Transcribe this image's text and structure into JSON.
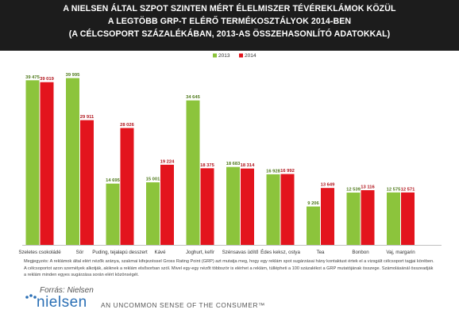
{
  "header": {
    "line1": "A NIELSEN ÁLTAL SZPOT SZINTEN MÉRT ÉLELMISZER TÉVÉREKLÁMOK KÖZÜL",
    "line2": "A LEGTÖBB GRP-T ELÉRŐ TERMÉKOSZTÁLYOK 2014-BEN",
    "line3": "(A CÉLCSOPORT SZÁZALÉKÁBAN, 2013-AS ÖSSZEHASONLÍTÓ ADATOKKAL)"
  },
  "chart_data": {
    "type": "bar",
    "categories": [
      "Szeletes csokoládé",
      "Sör",
      "Puding, tejalapú desszert",
      "Kávé",
      "Joghurt, kefír",
      "Szénsavas üdítő",
      "Édes keksz, ostya",
      "Tea",
      "Bonbon",
      "Vaj, margarin"
    ],
    "series": [
      {
        "name": "2013",
        "color": "#8cc43c",
        "values": [
          39475,
          39995,
          14695,
          15001,
          34645,
          18683,
          16928,
          9206,
          12539,
          12575
        ],
        "labels": [
          "39 475",
          "39 995",
          "14 695",
          "15 001",
          "34 645",
          "18 683",
          "16 928",
          "9 206",
          "12 539",
          "12 575"
        ]
      },
      {
        "name": "2014",
        "color": "#e3141d",
        "values": [
          39019,
          29911,
          28026,
          19224,
          18375,
          18314,
          16992,
          13649,
          13116,
          12571
        ],
        "labels": [
          "39 019",
          "29 911",
          "28 026",
          "19 224",
          "18 375",
          "18 314",
          "16 992",
          "13 649",
          "13 116",
          "12 571"
        ]
      }
    ],
    "ylim": [
      0,
      42000
    ],
    "grid": false,
    "legend": "top-right"
  },
  "footer": {
    "note": "Megjegyzés: A reklámok által elért nézők aránya, szakmai kifejezéssel Gross Rating Point (GRP) azt mutatja meg, hogy egy reklám spot sugárzásai hány kontaktust értek el a vizsgált célcsoport tagjai körében. A célcsoportot azon személyek alkotják, akiknek a reklám elsősorban szól. Mivel egy-egy nézőt többször is elérhet a reklám, túllépheti a 100 százalékot a GRP mutatójának összege. Számolásánál összeadják a reklám minden egyes sugárzása során elért közönségét.",
    "source": "Forrás: Nielsen",
    "logo": "nielsen",
    "tagline": "AN UNCOMMON SENSE OF THE CONSUMER™"
  }
}
